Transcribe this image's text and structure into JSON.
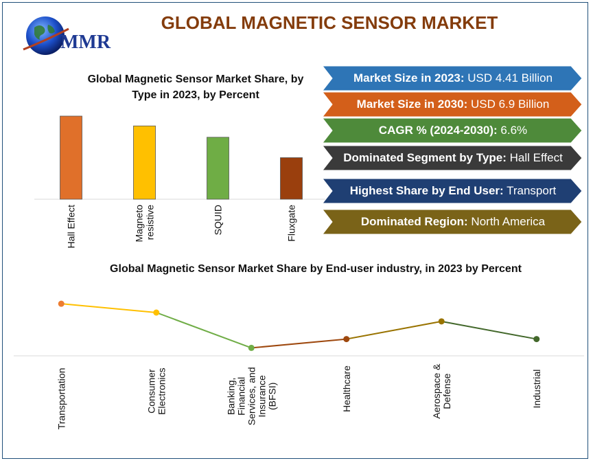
{
  "header": {
    "title": "GLOBAL MAGNETIC SENSOR MARKET",
    "logo_text": "MMR"
  },
  "stats": [
    {
      "label": "Market Size in 2023:",
      "value": "USD 4.41 Billion",
      "color": "#2e75b6"
    },
    {
      "label": "Market Size in 2030:",
      "value": "USD 6.9 Billion",
      "color": "#d35f1a"
    },
    {
      "label": "CAGR % (2024-2030):",
      "value": "6.6%",
      "color": "#4e8a3a"
    },
    {
      "label": "Dominated Segment by Type:",
      "value": "Hall Effect",
      "color": "#3a3a3a"
    },
    {
      "label": "Highest Share by End User:",
      "value": "Transport",
      "color": "#1f3f73"
    },
    {
      "label": "Dominated Region:",
      "value": "North America",
      "color": "#7a6318"
    }
  ],
  "chart_data": [
    {
      "type": "bar",
      "title": "Global Magnetic Sensor Market Share, by Type in 2023, by Percent",
      "categories": [
        "Hall Effect",
        "Magneto resistive",
        "SQUID",
        "Fluxgate"
      ],
      "category_lines": [
        [
          "Hall Effect"
        ],
        [
          "Magneto",
          "resistive"
        ],
        [
          "SQUID"
        ],
        [
          "Fluxgate"
        ]
      ],
      "values": [
        110,
        97,
        82,
        55
      ],
      "colors": [
        "#e0702a",
        "#ffc000",
        "#6fad45",
        "#9a3f0d"
      ],
      "ylim": [
        0,
        120
      ],
      "grid": false,
      "legend": "none"
    },
    {
      "type": "line",
      "title": "Global Magnetic Sensor Market Share by End-user industry, in 2023 by Percent",
      "categories": [
        "Transportation",
        "Consumer Electronics",
        "Banking, Financial Services, and Insurance (BFSI)",
        "Healthcare",
        "Aerospace & Defense",
        "Industrial"
      ],
      "category_lines": [
        [
          "Transportation"
        ],
        [
          "Consumer",
          "Electronics"
        ],
        [
          "Banking,",
          "Financial",
          "Services, and",
          "Insurance",
          "(BFSI)"
        ],
        [
          "Healthcare"
        ],
        [
          "Aerospace &",
          "Defense"
        ],
        [
          "Industrial"
        ]
      ],
      "values": [
        59,
        49,
        9,
        19,
        39,
        19
      ],
      "point_colors": [
        "#ed7d31",
        "#ffc000",
        "#70ad47",
        "#9e480e",
        "#997300",
        "#43682b"
      ],
      "segment_colors": [
        "#ffc000",
        "#70ad47",
        "#9e480e",
        "#997300",
        "#43682b"
      ],
      "ylim": [
        0,
        70
      ],
      "grid": false,
      "legend": "none"
    }
  ]
}
